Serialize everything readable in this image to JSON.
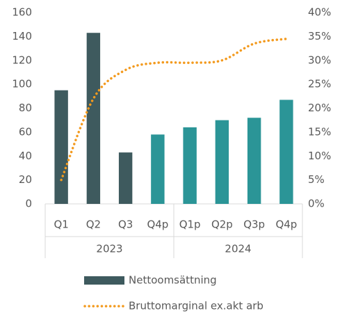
{
  "chart_data": {
    "type": "bar_line",
    "groups": [
      {
        "name": "2023",
        "categories": [
          "Q1",
          "Q2",
          "Q3",
          "Q4p"
        ]
      },
      {
        "name": "2024",
        "categories": [
          "Q1p",
          "Q2p",
          "Q3p",
          "Q4p"
        ]
      }
    ],
    "series": [
      {
        "name": "Nettoomsättning",
        "type": "bar",
        "color": "#3e5a5e",
        "colors": [
          "#3e5a5e",
          "#3e5a5e",
          "#3e5a5e",
          "#2b9597",
          "#2b9597",
          "#2b9597",
          "#2b9597",
          "#2b9597"
        ],
        "values": [
          95,
          143,
          43,
          58,
          64,
          70,
          72,
          87
        ]
      },
      {
        "name": "Bruttomarginal ex.akt arb",
        "type": "line",
        "axis": "y2",
        "color": "#f39a1e",
        "values": [
          5,
          22,
          28,
          29.5,
          29.5,
          30,
          33.5,
          34.5
        ]
      }
    ],
    "ylim": [
      0,
      160
    ],
    "yticks": [
      0,
      20,
      40,
      60,
      80,
      100,
      120,
      140,
      160
    ],
    "y2lim": [
      0,
      40
    ],
    "y2ticks": [
      {
        "value": 0,
        "label": "0%"
      },
      {
        "value": 5,
        "label": "5%"
      },
      {
        "value": 10,
        "label": "10%"
      },
      {
        "value": 15,
        "label": "15%"
      },
      {
        "value": 20,
        "label": "20%"
      },
      {
        "value": 25,
        "label": "25%"
      },
      {
        "value": 30,
        "label": "30%"
      },
      {
        "value": 35,
        "label": "35%"
      },
      {
        "value": 40,
        "label": "40%"
      }
    ]
  }
}
